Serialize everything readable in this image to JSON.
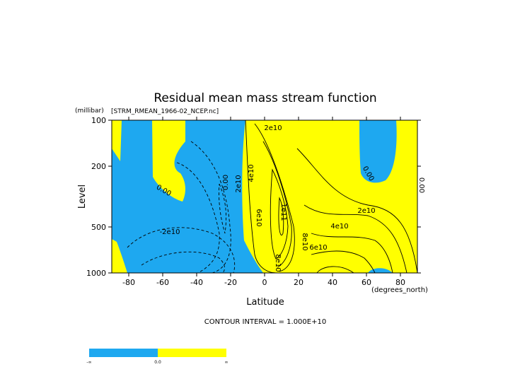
{
  "chart_data": {
    "type": "contour",
    "title": "Residual mean mass stream function",
    "subtitle": "[STRM_RMEAN_1966-02_NCEP.nc]",
    "y_unit": "(millibar)",
    "x_unit": "(degrees_north)",
    "x_label": "Latitude",
    "y_label": "Level",
    "xlim": [
      -90,
      90
    ],
    "xticks": [
      -80,
      -60,
      -40,
      -20,
      0,
      20,
      40,
      60,
      80
    ],
    "ylim": [
      1000,
      100
    ],
    "yticks": [
      100,
      200,
      500,
      1000
    ],
    "log_y": true,
    "colors": [
      "#1ea8f0",
      "#ffff00"
    ],
    "note": "CONTOUR INTERVAL = 1.000E+10",
    "colorbar_labels": [
      "-∞",
      "0.0",
      "∞"
    ],
    "contour_labels": [
      "2e10",
      "4e10",
      "2e10",
      "0.00",
      "1e11",
      "6e10",
      "8e10",
      "2e10",
      "4e10",
      "6e10",
      "8e10",
      "0.00",
      "-2e10",
      "0.00",
      "0.00"
    ]
  }
}
